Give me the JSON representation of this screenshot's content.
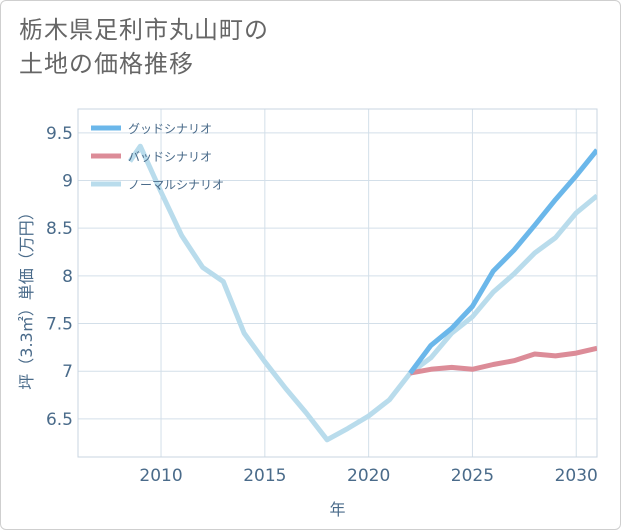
{
  "title_lines": [
    "栃木県足利市丸山町の",
    "土地の価格推移"
  ],
  "chart_data": {
    "type": "line",
    "title": "栃木県足利市丸山町の土地の価格推移",
    "xlabel": "年",
    "ylabel": "坪（3.3㎡）単価（万円）",
    "xlim": [
      2006,
      2031
    ],
    "ylim": [
      6.1,
      9.75
    ],
    "x_ticks": [
      2010,
      2015,
      2020,
      2025,
      2030
    ],
    "x_tick_labels": [
      "2010",
      "2015",
      "2020",
      "2025",
      "2030"
    ],
    "y_ticks": [
      6.5,
      7,
      7.5,
      8,
      8.5,
      9,
      9.5
    ],
    "y_tick_labels": [
      "6.5",
      "7",
      "7.5",
      "8",
      "8.5",
      "9",
      "9.5"
    ],
    "grid": true,
    "legend_position": "top-left",
    "series": [
      {
        "name": "グッドシナリオ",
        "color": "#6bb7ea",
        "x": [
          2022,
          2023,
          2024,
          2025,
          2026,
          2027,
          2028,
          2029,
          2030,
          2031
        ],
        "values": [
          6.98,
          7.27,
          7.45,
          7.68,
          8.05,
          8.27,
          8.53,
          8.8,
          9.05,
          9.32
        ]
      },
      {
        "name": "バッドシナリオ",
        "color": "#dc8c98",
        "x": [
          2022,
          2023,
          2024,
          2025,
          2026,
          2027,
          2028,
          2029,
          2030,
          2031
        ],
        "values": [
          6.98,
          7.02,
          7.04,
          7.02,
          7.07,
          7.11,
          7.18,
          7.16,
          7.19,
          7.24
        ]
      },
      {
        "name": "ノーマルシナリオ",
        "color": "#b9dcec",
        "x": [
          2008.5,
          2009,
          2010,
          2011,
          2012,
          2013,
          2014,
          2015,
          2016,
          2017,
          2018,
          2019,
          2020,
          2021,
          2022,
          2023,
          2024,
          2025,
          2026,
          2027,
          2028,
          2029,
          2030,
          2031
        ],
        "values": [
          9.2,
          9.36,
          8.88,
          8.42,
          8.09,
          7.94,
          7.4,
          7.1,
          6.82,
          6.56,
          6.28,
          6.4,
          6.53,
          6.7,
          6.98,
          7.14,
          7.4,
          7.57,
          7.83,
          8.02,
          8.24,
          8.4,
          8.66,
          8.84
        ]
      }
    ]
  }
}
